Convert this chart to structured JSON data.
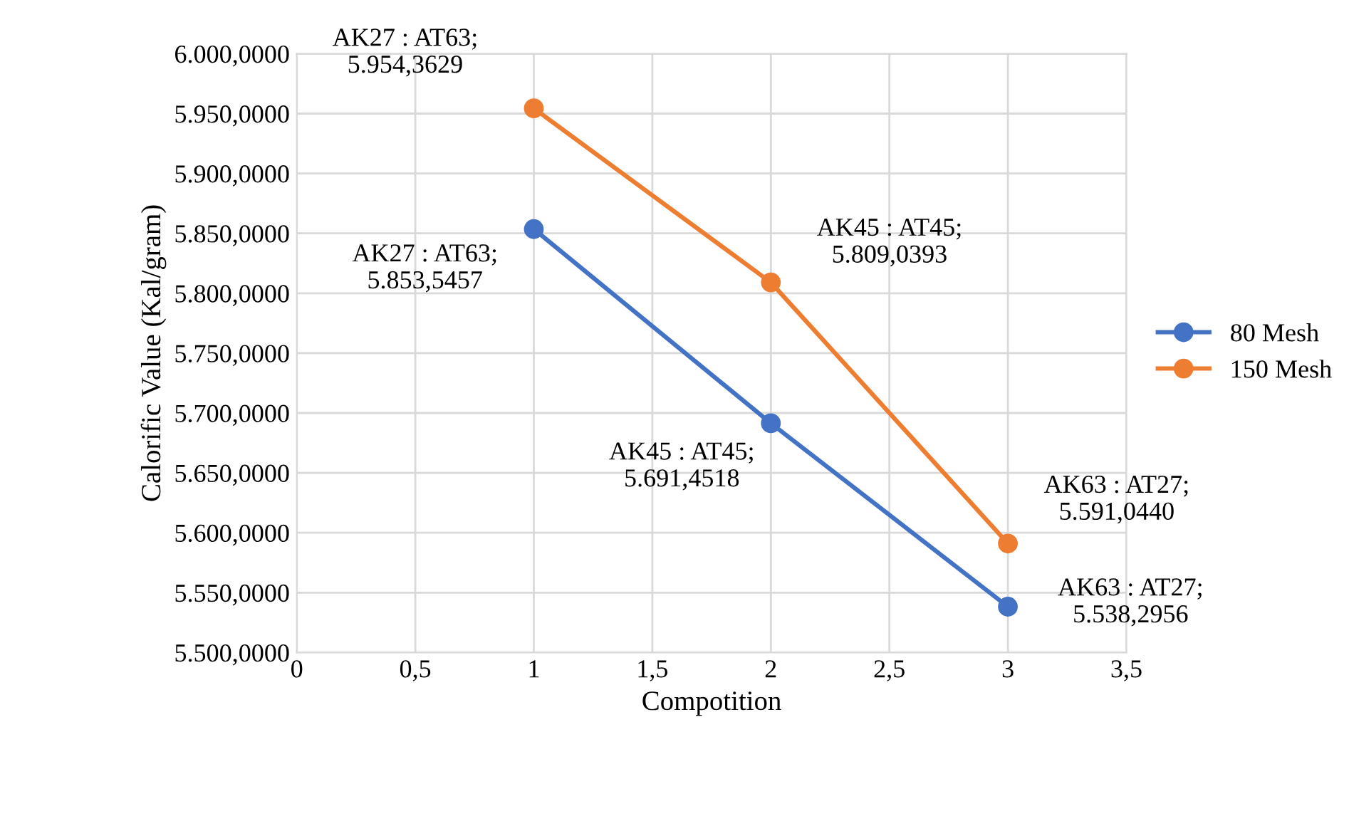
{
  "chart_data": {
    "type": "line",
    "xlabel": "Compotition",
    "ylabel": "Calorific Value (Kal/gram)",
    "x": [
      1,
      2,
      3
    ],
    "series": [
      {
        "name": "80 Mesh",
        "color": "#4472c4",
        "values": [
          5853.5457,
          5691.4518,
          5538.2956
        ]
      },
      {
        "name": "150 Mesh",
        "color": "#ed7d31",
        "values": [
          5954.3629,
          5809.0393,
          5591.044
        ]
      }
    ],
    "xlim": [
      0,
      3.5
    ],
    "xticks": [
      0,
      {
        "value": 0.5,
        "label": "0,5"
      },
      1,
      {
        "value": 1.5,
        "label": "1,5"
      },
      2,
      {
        "value": 2.5,
        "label": "2,5"
      },
      3,
      {
        "value": 3.5,
        "label": "3,5"
      }
    ],
    "ylim": [
      5500,
      6000
    ],
    "yticks": [
      {
        "value": 5500,
        "label": "5.500,0000"
      },
      {
        "value": 5550,
        "label": "5.550,0000"
      },
      {
        "value": 5600,
        "label": "5.600,0000"
      },
      {
        "value": 5650,
        "label": "5.650,0000"
      },
      {
        "value": 5700,
        "label": "5.700,0000"
      },
      {
        "value": 5750,
        "label": "5.750,0000"
      },
      {
        "value": 5800,
        "label": "5.800,0000"
      },
      {
        "value": 5850,
        "label": "5.850,0000"
      },
      {
        "value": 5900,
        "label": "5.900,0000"
      },
      {
        "value": 5950,
        "label": "5.950,0000"
      },
      {
        "value": 6000,
        "label": "6.000,0000"
      }
    ],
    "grid": true,
    "legend": "right",
    "marker": "circle",
    "line_style": "solid",
    "annotations": [
      {
        "text": "AK27 : AT63;\n5.853,5457",
        "x": 1,
        "y": 5853.5457
      },
      {
        "text": "AK45 : AT45;\n5.691,4518",
        "x": 2,
        "y": 5691.4518
      },
      {
        "text": "AK63 : AT27;\n5.538,2956",
        "x": 3,
        "y": 5538.2956
      },
      {
        "text": "AK27 : AT63;\n5.954,3629",
        "x": 1,
        "y": 5954.3629
      },
      {
        "text": "AK45 : AT45;\n5.809,0393",
        "x": 2,
        "y": 5809.0393
      },
      {
        "text": "AK63 : AT27;\n5.591,0440",
        "x": 3,
        "y": 5591.044
      }
    ]
  }
}
